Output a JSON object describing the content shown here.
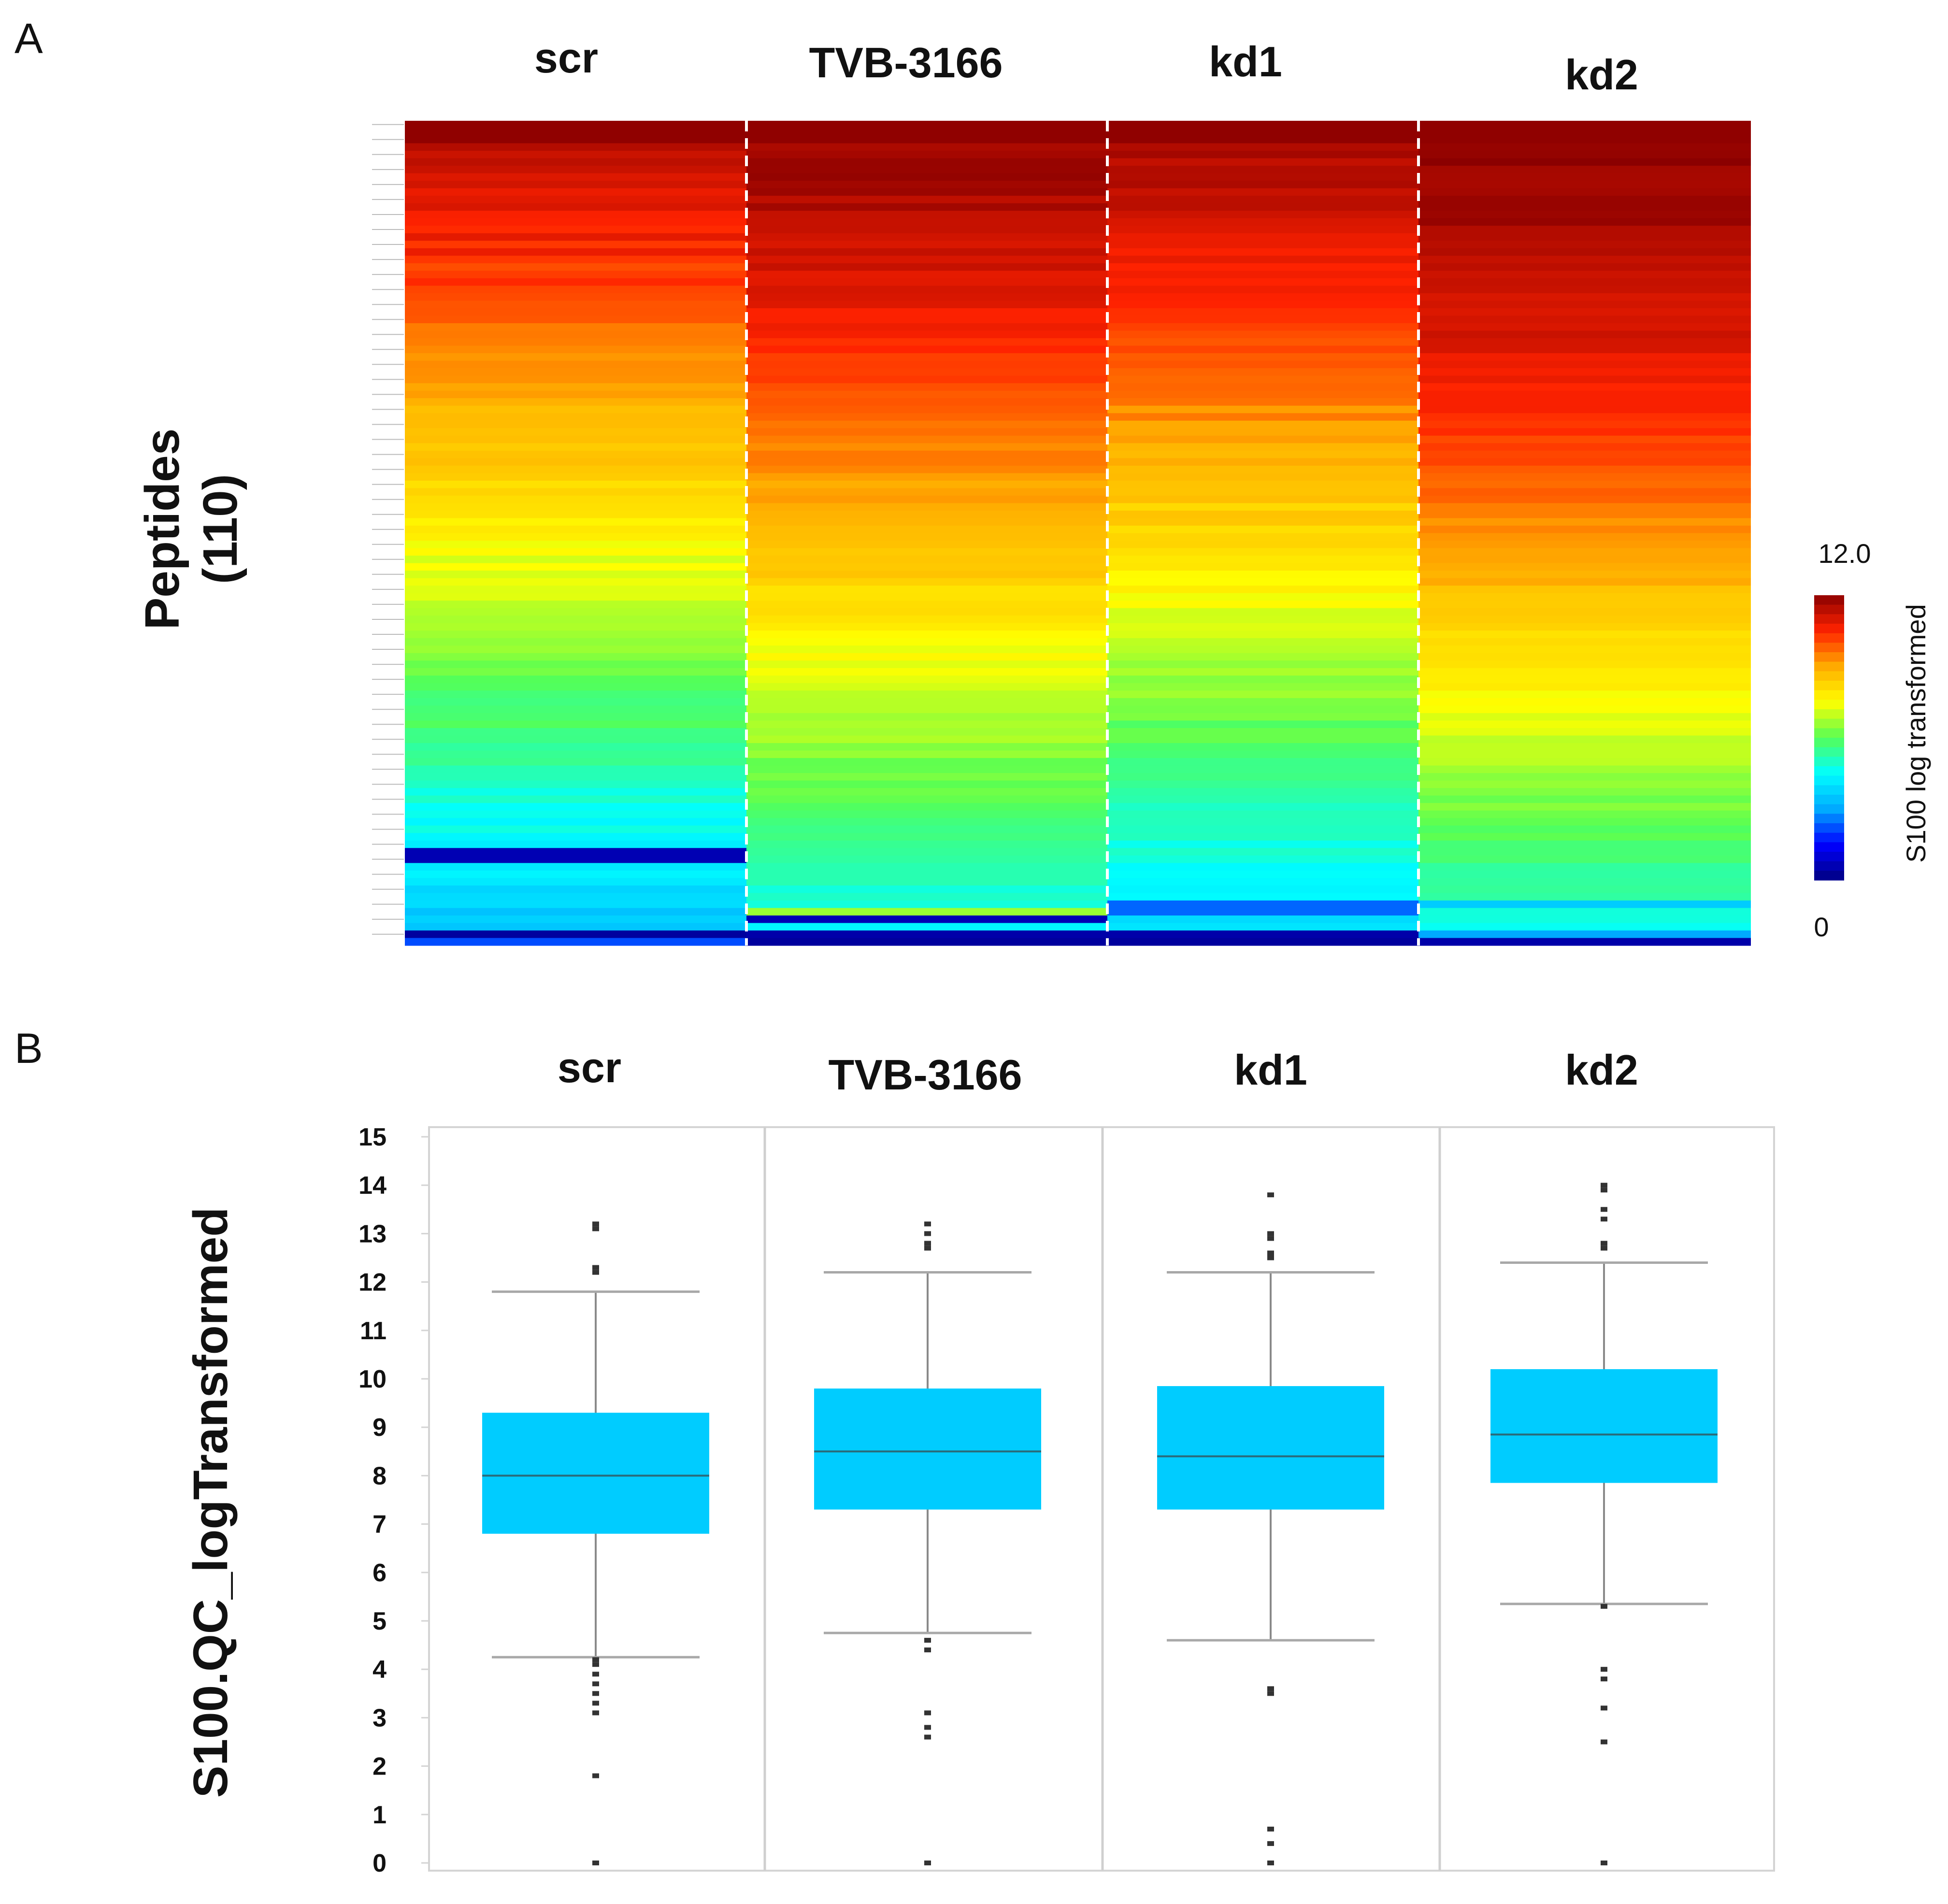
{
  "panels": {
    "a_label": "A",
    "b_label": "B"
  },
  "heatmap": {
    "columns": [
      "scr",
      "TVB-3166",
      "kd1",
      "kd2"
    ],
    "ylabel_line1": "Peptides",
    "ylabel_line2": "(110)",
    "n_rows": 110,
    "colorbar": {
      "max_label": "12.0",
      "min_label": "0",
      "title": "S100 log transformed",
      "min": 0,
      "max": 12,
      "stops": [
        "#000080",
        "#0000ff",
        "#00aaff",
        "#00ffff",
        "#55ff55",
        "#ffff00",
        "#ffaa00",
        "#ff2200",
        "#8b0000"
      ]
    }
  },
  "chart_data": {
    "type": "box",
    "categories": [
      "scr",
      "TVB-3166",
      "kd1",
      "kd2"
    ],
    "ylabel": "S100.QC_logTransformed",
    "ylim": [
      0,
      15
    ],
    "yticks": [
      0,
      1,
      2,
      3,
      4,
      5,
      6,
      7,
      8,
      9,
      10,
      11,
      12,
      13,
      14,
      15
    ],
    "box_color": "#00ccff",
    "boxes": [
      {
        "name": "scr",
        "q1": 6.8,
        "median": 8.0,
        "q3": 9.3,
        "whisker_low": 4.25,
        "whisker_high": 11.8,
        "outliers": [
          13.2,
          13.1,
          12.3,
          12.2,
          4.2,
          4.1,
          3.9,
          3.7,
          3.5,
          3.3,
          3.1,
          1.8,
          0
        ]
      },
      {
        "name": "TVB-3166",
        "q1": 7.3,
        "median": 8.5,
        "q3": 9.8,
        "whisker_low": 4.75,
        "whisker_high": 12.2,
        "outliers": [
          13.2,
          13.0,
          12.8,
          12.7,
          4.6,
          4.4,
          3.1,
          2.8,
          2.6,
          0
        ]
      },
      {
        "name": "kd1",
        "q1": 7.3,
        "median": 8.4,
        "q3": 9.85,
        "whisker_low": 4.6,
        "whisker_high": 12.2,
        "outliers": [
          13.8,
          13.0,
          12.9,
          12.6,
          12.5,
          3.6,
          3.5,
          0.7,
          0.4,
          0
        ]
      },
      {
        "name": "kd2",
        "q1": 7.85,
        "median": 8.85,
        "q3": 10.2,
        "whisker_low": 5.35,
        "whisker_high": 12.4,
        "outliers": [
          14.0,
          13.9,
          13.5,
          13.3,
          12.8,
          12.7,
          5.3,
          4.0,
          3.8,
          3.2,
          2.5,
          0
        ]
      }
    ]
  }
}
